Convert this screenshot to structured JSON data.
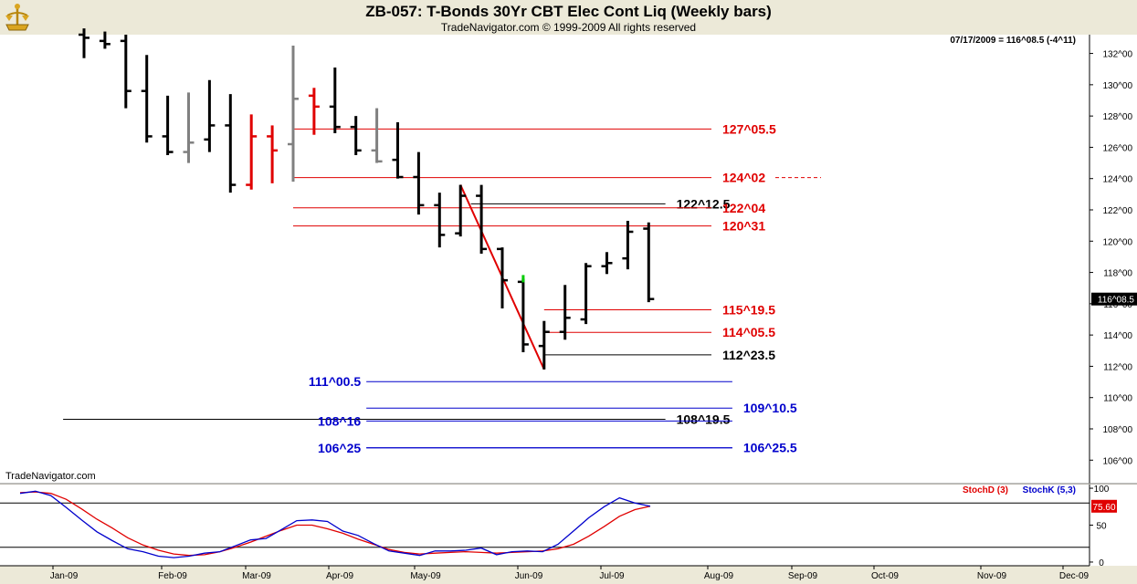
{
  "header": {
    "title": "ZB-057:  T-Bonds 30Yr CBT Elec Cont Liq  (Weekly bars)",
    "copyright": "TradeNavigator.com © 1999-2009 All rights reserved",
    "quote": "07/17/2009 = 116^08.5 (-4^11)",
    "watermark": "TradeNavigator.com"
  },
  "colors": {
    "up": "#000000",
    "red": "#e00000",
    "gray": "#808080",
    "blue": "#0000cc",
    "green": "#00cc00"
  },
  "chart_data": [
    {
      "type": "ohlc",
      "title": "ZB-057:  T-Bonds 30Yr CBT Elec Cont Liq  (Weekly bars)",
      "ylim": [
        104.5,
        133.2
      ],
      "y_ticks": [
        106,
        108,
        110,
        112,
        114,
        116,
        118,
        120,
        122,
        124,
        126,
        128,
        130,
        132
      ],
      "y_tick_labels": [
        "106^00",
        "108^00",
        "110^00",
        "112^00",
        "114^00",
        "116^00",
        "118^00",
        "120^00",
        "122^00",
        "124^00",
        "126^00",
        "128^00",
        "130^00",
        "132^00"
      ],
      "last_price_label": "116^08.5",
      "x_labels": [
        "Jan-09",
        "Feb-09",
        "Mar-09",
        "Apr-09",
        "May-09",
        "Jun-09",
        "Jul-09",
        "Aug-09",
        "Sep-09",
        "Oct-09",
        "Nov-09",
        "Dec-09"
      ],
      "bars": [
        {
          "week": 0,
          "h": 133.6,
          "l": 131.7,
          "o": 133.2,
          "c": 133.0,
          "color": "black"
        },
        {
          "week": 1,
          "h": 133.4,
          "l": 132.3,
          "o": 132.8,
          "c": 132.6,
          "color": "black"
        },
        {
          "week": 2,
          "h": 133.2,
          "l": 128.5,
          "o": 132.8,
          "c": 129.6,
          "color": "black"
        },
        {
          "week": 3,
          "h": 131.9,
          "l": 126.3,
          "o": 129.6,
          "c": 126.7,
          "color": "black"
        },
        {
          "week": 4,
          "h": 129.3,
          "l": 125.5,
          "o": 126.7,
          "c": 125.7,
          "color": "black"
        },
        {
          "week": 5,
          "h": 129.5,
          "l": 125.0,
          "o": 125.7,
          "c": 126.3,
          "color": "gray"
        },
        {
          "week": 6,
          "h": 130.3,
          "l": 125.7,
          "o": 126.5,
          "c": 127.4,
          "color": "black"
        },
        {
          "week": 7,
          "h": 129.4,
          "l": 123.1,
          "o": 127.4,
          "c": 123.6,
          "color": "black"
        },
        {
          "week": 8,
          "h": 128.1,
          "l": 123.3,
          "o": 123.6,
          "c": 126.7,
          "color": "red"
        },
        {
          "week": 9,
          "h": 127.4,
          "l": 123.7,
          "o": 126.7,
          "c": 125.8,
          "color": "red"
        },
        {
          "week": 10,
          "h": 132.5,
          "l": 123.8,
          "o": 126.2,
          "c": 129.1,
          "color": "gray"
        },
        {
          "week": 11,
          "h": 129.8,
          "l": 126.8,
          "o": 129.3,
          "c": 128.6,
          "color": "red"
        },
        {
          "week": 12,
          "h": 131.1,
          "l": 126.9,
          "o": 128.6,
          "c": 127.3,
          "color": "black"
        },
        {
          "week": 13,
          "h": 128.0,
          "l": 125.5,
          "o": 127.3,
          "c": 125.8,
          "color": "black"
        },
        {
          "week": 14,
          "h": 128.5,
          "l": 125.0,
          "o": 125.8,
          "c": 125.1,
          "color": "gray"
        },
        {
          "week": 15,
          "h": 127.6,
          "l": 124.0,
          "o": 125.2,
          "c": 124.1,
          "color": "black"
        },
        {
          "week": 16,
          "h": 125.7,
          "l": 121.7,
          "o": 124.1,
          "c": 122.3,
          "color": "black"
        },
        {
          "week": 17,
          "h": 123.1,
          "l": 119.6,
          "o": 122.3,
          "c": 120.4,
          "color": "black"
        },
        {
          "week": 18,
          "h": 123.6,
          "l": 120.3,
          "o": 120.5,
          "c": 122.9,
          "color": "black"
        },
        {
          "week": 19,
          "h": 123.6,
          "l": 119.2,
          "o": 122.9,
          "c": 119.5,
          "color": "black"
        },
        {
          "week": 20,
          "h": 119.6,
          "l": 115.7,
          "o": 119.5,
          "c": 117.5,
          "color": "black"
        },
        {
          "week": 21,
          "h": 117.6,
          "l": 112.9,
          "o": 117.4,
          "c": 113.4,
          "color": "black"
        },
        {
          "week": 22,
          "h": 114.9,
          "l": 111.8,
          "o": 113.3,
          "c": 114.2,
          "color": "black"
        },
        {
          "week": 23,
          "h": 117.2,
          "l": 113.7,
          "o": 114.2,
          "c": 115.1,
          "color": "black"
        },
        {
          "week": 24,
          "h": 118.6,
          "l": 114.7,
          "o": 115.0,
          "c": 118.4,
          "color": "black"
        },
        {
          "week": 25,
          "h": 119.3,
          "l": 117.9,
          "o": 118.4,
          "c": 118.6,
          "color": "black"
        },
        {
          "week": 26,
          "h": 121.3,
          "l": 118.2,
          "o": 118.9,
          "c": 120.6,
          "color": "black"
        },
        {
          "week": 27,
          "h": 121.2,
          "l": 116.1,
          "o": 120.8,
          "c": 116.3,
          "color": "black"
        }
      ],
      "levels": [
        {
          "value": 127.17,
          "label": "127^05.5",
          "color": "red",
          "x_start_week": 10,
          "x_end_week": 30,
          "label_side": "right"
        },
        {
          "value": 124.06,
          "label": "124^02",
          "color": "red",
          "x_start_week": 10,
          "x_end_week": 30,
          "label_side": "right",
          "dashed_tail": true
        },
        {
          "value": 122.39,
          "label": "122^12.5",
          "color": "black",
          "x_start_week": 18.5,
          "x_end_week": 27.8,
          "label_side": "right"
        },
        {
          "value": 122.13,
          "label": "122^04",
          "color": "red",
          "x_start_week": 10,
          "x_end_week": 30,
          "label_side": "right"
        },
        {
          "value": 120.97,
          "label": "120^31",
          "color": "red",
          "x_start_week": 10,
          "x_end_week": 30,
          "label_side": "right"
        },
        {
          "value": 115.61,
          "label": "115^19.5",
          "color": "red",
          "x_start_week": 22,
          "x_end_week": 30,
          "label_side": "right"
        },
        {
          "value": 114.17,
          "label": "114^05.5",
          "color": "red",
          "x_start_week": 22,
          "x_end_week": 30,
          "label_side": "right"
        },
        {
          "value": 112.73,
          "label": "112^23.5",
          "color": "black",
          "x_start_week": 22,
          "x_end_week": 30,
          "label_side": "right"
        },
        {
          "value": 111.02,
          "label": "111^00.5",
          "color": "blue",
          "x_start_week": 13.5,
          "x_end_week": 31,
          "label_side": "left"
        },
        {
          "value": 109.33,
          "label": "109^10.5",
          "color": "blue",
          "x_start_week": 13.5,
          "x_end_week": 31,
          "label_side": "right"
        },
        {
          "value": 108.61,
          "label": "108^19.5",
          "color": "black",
          "x_start_week": -1,
          "x_end_week": 27.8,
          "label_side": "right"
        },
        {
          "value": 108.5,
          "label": "108^16",
          "color": "blue",
          "x_start_week": 13.5,
          "x_end_week": 31,
          "label_side": "left"
        },
        {
          "value": 106.78,
          "label": "106^25",
          "color": "blue",
          "x_start_week": 13.5,
          "x_end_week": 31,
          "label_side": "left"
        },
        {
          "value": 106.8,
          "label": "106^25.5",
          "color": "blue",
          "x_start_week": 13.5,
          "x_end_week": 31,
          "label_side": "right"
        }
      ],
      "trendline": {
        "from": {
          "week": 18,
          "price": 123.6
        },
        "to": {
          "week": 22,
          "price": 111.8
        },
        "color": "red"
      }
    },
    {
      "type": "line",
      "ylim": [
        -5,
        105
      ],
      "y_ticks": [
        0,
        50,
        100
      ],
      "y_tick_labels": [
        "0",
        "50",
        "100"
      ],
      "reference_lines": [
        20,
        80
      ],
      "last_value_label": "75.60",
      "x_labels": [
        "Jan-09",
        "Feb-09",
        "Mar-09",
        "Apr-09",
        "May-09",
        "Jun-09",
        "Jul-09",
        "Aug-09",
        "Sep-09",
        "Oct-09",
        "Nov-09",
        "Dec-09"
      ],
      "series": [
        {
          "name": "StochD (3)",
          "color": "red",
          "values": [
            94,
            95,
            93,
            85,
            72,
            58,
            46,
            33,
            23,
            16,
            11,
            9,
            10,
            14,
            20,
            27,
            35,
            43,
            50,
            50,
            45,
            39,
            31,
            24,
            17,
            13,
            11,
            12,
            13,
            14,
            13,
            12,
            13,
            14,
            15,
            18,
            24,
            35,
            48,
            62,
            71,
            75.6
          ]
        },
        {
          "name": "StochK (5,3)",
          "color": "blue",
          "values": [
            93,
            96,
            90,
            74,
            57,
            41,
            29,
            18,
            14,
            8,
            6,
            8,
            12,
            14,
            22,
            30,
            32,
            44,
            56,
            57,
            55,
            42,
            36,
            25,
            15,
            12,
            9,
            15,
            15,
            16,
            19,
            10,
            14,
            15,
            14,
            24,
            42,
            60,
            75,
            87,
            80,
            75.6
          ]
        }
      ]
    }
  ]
}
